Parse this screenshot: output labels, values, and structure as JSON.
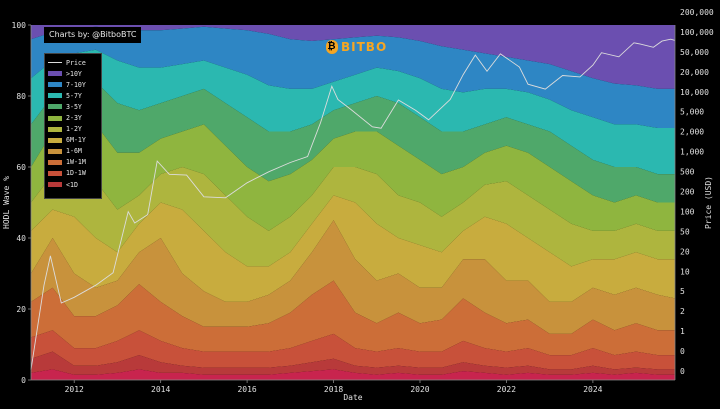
{
  "credit": "Charts by: @BitboBTC",
  "brand": {
    "name": "BITBO",
    "icon": "bitbo-logo-icon",
    "icon_glyph": "₿"
  },
  "colors": {
    "background": "#000000",
    "price_line": "#dcdcdc",
    "bands": [
      "#c8244e",
      "#b83a3a",
      "#c8513a",
      "#cc6e38",
      "#c8923c",
      "#c8ac3e",
      "#aeb53e",
      "#8fb53f",
      "#4fa86a",
      "#2bb8b0",
      "#2e86c4",
      "#6b4fb0"
    ]
  },
  "chart_data": {
    "type": "area",
    "stacked": true,
    "xlabel": "Date",
    "ylabel": "HODL Wave %",
    "y2label": "Price (USD)",
    "xlim": [
      2011.0,
      2025.9
    ],
    "ylim": [
      0,
      100
    ],
    "x_ticks": [
      "2012",
      "2014",
      "2016",
      "2018",
      "2020",
      "2022",
      "2024"
    ],
    "x_tick_values": [
      2012,
      2014,
      2016,
      2018,
      2020,
      2022,
      2024
    ],
    "y_ticks": [
      "0",
      "20",
      "40",
      "60",
      "80",
      "100"
    ],
    "y_tick_values": [
      0,
      20,
      40,
      60,
      80,
      100
    ],
    "y2_scale": "log",
    "y2_ticks": [
      "0",
      "0",
      "1",
      "2",
      "5",
      "10",
      "20",
      "50",
      "100",
      "200",
      "500",
      "1,000",
      "2,000",
      "5,000",
      "10,000",
      "20,000",
      "50,000",
      "100,000",
      "200,000"
    ],
    "grid": false,
    "legend_position": "top-left",
    "legend": [
      {
        "name": "Price",
        "kind": "line"
      },
      {
        "name": ">10Y",
        "kind": "band"
      },
      {
        "name": "7-10Y",
        "kind": "band"
      },
      {
        "name": "5-7Y",
        "kind": "band"
      },
      {
        "name": "3-5Y",
        "kind": "band"
      },
      {
        "name": "2-3Y",
        "kind": "band"
      },
      {
        "name": "1-2Y",
        "kind": "band"
      },
      {
        "name": "6M-1Y",
        "kind": "band"
      },
      {
        "name": "1-6M",
        "kind": "band"
      },
      {
        "name": "1W-1M",
        "kind": "band"
      },
      {
        "name": "1D-1W",
        "kind": "band"
      },
      {
        "name": "<1D",
        "kind": "band"
      }
    ],
    "x": [
      2011.0,
      2011.5,
      2012.0,
      2012.5,
      2013.0,
      2013.5,
      2014.0,
      2014.5,
      2015.0,
      2015.5,
      2016.0,
      2016.5,
      2017.0,
      2017.5,
      2018.0,
      2018.5,
      2019.0,
      2019.5,
      2020.0,
      2020.5,
      2021.0,
      2021.5,
      2022.0,
      2022.5,
      2023.0,
      2023.5,
      2024.0,
      2024.5,
      2025.0,
      2025.5,
      2025.9
    ],
    "boundaries": [
      {
        "name": "<1D",
        "values": [
          2,
          3,
          1.5,
          1.5,
          2,
          3,
          2,
          2,
          1.5,
          1.5,
          1.5,
          1.5,
          2,
          2.5,
          3,
          2,
          1.5,
          2,
          1.5,
          1.5,
          2.5,
          2,
          1.5,
          2,
          1.5,
          1.5,
          2,
          1.5,
          2,
          1.5,
          1.5
        ]
      },
      {
        "name": "1D-1W",
        "values": [
          6,
          8,
          4,
          4,
          5,
          7,
          5,
          4,
          3.5,
          3.5,
          3.5,
          3.5,
          4,
          5,
          6,
          4,
          3.5,
          4,
          3.5,
          3.5,
          5,
          4,
          3.5,
          4,
          3,
          3,
          4,
          3,
          3.5,
          3,
          3
        ]
      },
      {
        "name": "1W-1M",
        "values": [
          12,
          14,
          9,
          9,
          11,
          14,
          11,
          9,
          8,
          8,
          8,
          8,
          9,
          11,
          13,
          9,
          8,
          9,
          8,
          8,
          11,
          9,
          8,
          9,
          7,
          7,
          9,
          7,
          8,
          7,
          7
        ]
      },
      {
        "name": "1-6M",
        "values": [
          22,
          26,
          18,
          18,
          21,
          27,
          22,
          18,
          15,
          15,
          15,
          16,
          19,
          24,
          28,
          19,
          16,
          19,
          16,
          17,
          23,
          19,
          16,
          17,
          13,
          13,
          17,
          14,
          16,
          14,
          14
        ]
      },
      {
        "name": "6M-1Y",
        "values": [
          30,
          40,
          30,
          26,
          28,
          36,
          40,
          30,
          25,
          22,
          22,
          24,
          28,
          36,
          45,
          34,
          28,
          30,
          26,
          26,
          34,
          34,
          28,
          28,
          22,
          22,
          26,
          24,
          26,
          24,
          23
        ]
      },
      {
        "name": "1-2Y",
        "values": [
          42,
          48,
          46,
          40,
          36,
          44,
          50,
          48,
          42,
          36,
          32,
          32,
          36,
          44,
          52,
          50,
          44,
          40,
          38,
          36,
          42,
          46,
          44,
          40,
          36,
          32,
          34,
          34,
          36,
          34,
          34
        ]
      },
      {
        "name": "2-3Y",
        "values": [
          50,
          58,
          60,
          56,
          48,
          52,
          58,
          60,
          58,
          52,
          46,
          42,
          46,
          52,
          60,
          60,
          58,
          52,
          50,
          46,
          50,
          55,
          56,
          52,
          48,
          44,
          42,
          42,
          44,
          42,
          42
        ]
      },
      {
        "name": "3-5Y",
        "values": [
          60,
          70,
          74,
          72,
          64,
          64,
          68,
          70,
          72,
          66,
          60,
          56,
          58,
          62,
          68,
          70,
          70,
          66,
          62,
          58,
          60,
          64,
          66,
          64,
          60,
          56,
          52,
          50,
          52,
          50,
          50
        ]
      },
      {
        "name": "5-7Y",
        "values": [
          72,
          80,
          84,
          84,
          78,
          76,
          78,
          80,
          82,
          78,
          74,
          70,
          70,
          72,
          76,
          78,
          80,
          78,
          74,
          70,
          70,
          72,
          74,
          72,
          70,
          66,
          62,
          60,
          60,
          58,
          58
        ]
      },
      {
        "name": "7-10Y",
        "values": [
          85,
          90,
          92,
          93,
          90,
          88,
          88,
          89,
          90,
          88,
          86,
          83,
          82,
          82,
          84,
          86,
          88,
          87,
          85,
          82,
          81,
          82,
          82,
          81,
          79,
          76,
          74,
          72,
          72,
          71,
          71
        ]
      },
      {
        "name": ">10Y",
        "values": [
          96,
          98,
          99,
          99.5,
          99,
          98.5,
          98.5,
          99,
          99.5,
          99,
          98.5,
          97.5,
          96,
          95.5,
          96,
          96.5,
          97,
          96.5,
          95.5,
          94,
          93,
          92,
          91,
          90,
          89,
          87,
          85,
          83.5,
          83,
          82,
          82
        ]
      },
      {
        "name": "top",
        "values": [
          100,
          100,
          100,
          100,
          100,
          100,
          100,
          100,
          100,
          100,
          100,
          100,
          100,
          100,
          100,
          100,
          100,
          100,
          100,
          100,
          100,
          100,
          100,
          100,
          100,
          100,
          100,
          100,
          100,
          100,
          100
        ]
      }
    ],
    "price_x": [
      2011.0,
      2011.3,
      2011.45,
      2011.7,
      2012.0,
      2012.5,
      2012.9,
      2013.25,
      2013.4,
      2013.7,
      2013.92,
      2014.2,
      2014.6,
      2015.0,
      2015.5,
      2016.0,
      2016.5,
      2017.0,
      2017.4,
      2017.7,
      2017.96,
      2018.1,
      2018.4,
      2018.9,
      2019.1,
      2019.5,
      2019.9,
      2020.2,
      2020.7,
      2021.0,
      2021.28,
      2021.55,
      2021.86,
      2022.3,
      2022.5,
      2022.9,
      2023.3,
      2023.7,
      2024.0,
      2024.2,
      2024.6,
      2024.95,
      2025.1,
      2025.4,
      2025.6,
      2025.8,
      2025.9
    ],
    "price": [
      0.3,
      8,
      25,
      4,
      5,
      8,
      13,
      140,
      90,
      125,
      1000,
      600,
      580,
      250,
      240,
      430,
      660,
      950,
      1200,
      4500,
      18500,
      11000,
      7500,
      3800,
      3600,
      10800,
      7200,
      5000,
      11000,
      29000,
      62000,
      33000,
      65000,
      39000,
      20000,
      16500,
      28000,
      26500,
      42000,
      68000,
      58000,
      100000,
      95000,
      84000,
      107000,
      115000,
      110000
    ]
  }
}
